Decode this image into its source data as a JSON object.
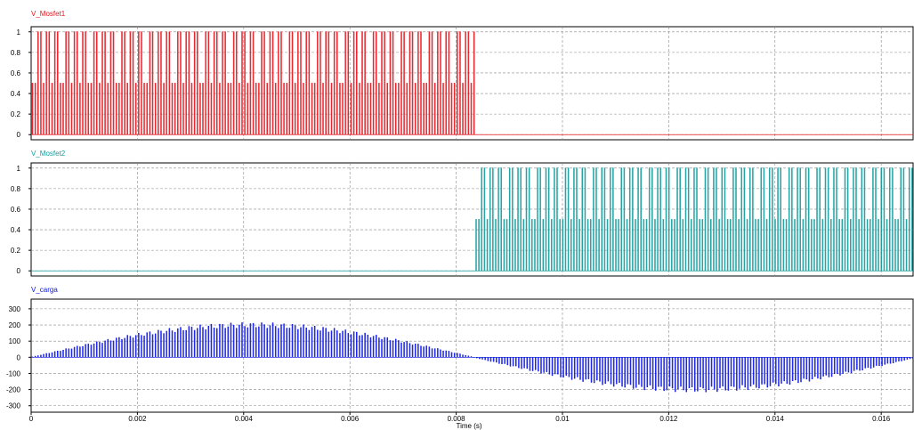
{
  "chart_data": [
    {
      "type": "line",
      "title": "V_Mosfet1",
      "color": "#e8141c",
      "ylim": [
        -0.05,
        1.05
      ],
      "yticks": [
        0,
        0.2,
        0.4,
        0.6,
        0.8,
        1
      ],
      "ytick_labels": [
        "0",
        "0.2",
        "0.4",
        "0.6",
        "0.8",
        "1"
      ],
      "series": [
        {
          "name": "V_Mosfet1",
          "signal": "pwm_pulses",
          "active_interval_s": [
            0,
            0.00835
          ],
          "levels": [
            0,
            0.5,
            1
          ],
          "level_after_s": 0,
          "pulse_period_s": 5.26e-05
        }
      ]
    },
    {
      "type": "line",
      "title": "V_Mosfet2",
      "color": "#129c9c",
      "ylim": [
        -0.05,
        1.05
      ],
      "yticks": [
        0,
        0.2,
        0.4,
        0.6,
        0.8,
        1
      ],
      "ytick_labels": [
        "0",
        "0.2",
        "0.4",
        "0.6",
        "0.8",
        "1"
      ],
      "series": [
        {
          "name": "V_Mosfet2",
          "signal": "pwm_pulses",
          "active_interval_s": [
            0.00835,
            0.0167
          ],
          "levels": [
            0,
            0.5,
            1
          ],
          "level_before_s": 0,
          "pulse_period_s": 5.26e-05
        }
      ]
    },
    {
      "type": "line",
      "title": "V_carga",
      "color": "#0a14e6",
      "ylim": [
        -340,
        360
      ],
      "yticks": [
        -300,
        -200,
        -100,
        0,
        100,
        200,
        300
      ],
      "ytick_labels": [
        "-300",
        "-200",
        "-100",
        "0",
        "100",
        "200",
        "300"
      ],
      "series": [
        {
          "name": "V_carga",
          "signal": "pwm_modulated_sine",
          "envelope_peak": 215,
          "envelope_freq_hz": 60,
          "positive_half_cycle_s": [
            0,
            0.00835
          ],
          "negative_half_cycle_s": [
            0.00835,
            0.0167
          ],
          "pulse_period_s": 5.26e-05
        }
      ]
    }
  ],
  "x_axis": {
    "label": "Time (s)",
    "xlim": [
      0,
      0.0166
    ],
    "ticks": [
      0,
      0.002,
      0.004,
      0.006,
      0.008,
      0.01,
      0.012,
      0.014,
      0.016
    ],
    "tick_labels": [
      "0",
      "0.002",
      "0.004",
      "0.006",
      "0.008",
      "0.01",
      "0.012",
      "0.014",
      "0.016"
    ]
  },
  "grid": true,
  "legend": "none"
}
